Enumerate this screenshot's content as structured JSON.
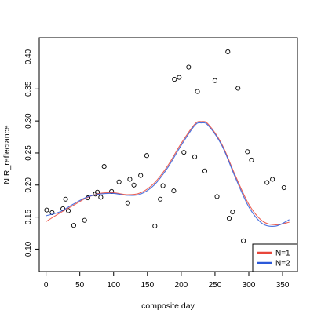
{
  "chart_data": {
    "type": "scatter",
    "title": "",
    "xlabel": "composite day",
    "ylabel": "NIR_reflectance",
    "xlim": [
      -10,
      372
    ],
    "ylim": [
      0.065,
      0.43
    ],
    "x_ticks": [
      0,
      50,
      100,
      150,
      200,
      250,
      300,
      350
    ],
    "y_ticks": [
      0.1,
      0.15,
      0.2,
      0.25,
      0.3,
      0.35,
      0.4
    ],
    "grid": false,
    "legend_position": "bottom-right",
    "points": [
      {
        "x": 1,
        "y": 0.161
      },
      {
        "x": 9,
        "y": 0.157
      },
      {
        "x": 25,
        "y": 0.163
      },
      {
        "x": 29,
        "y": 0.178
      },
      {
        "x": 33,
        "y": 0.16
      },
      {
        "x": 41,
        "y": 0.137
      },
      {
        "x": 57,
        "y": 0.145
      },
      {
        "x": 62,
        "y": 0.18
      },
      {
        "x": 73,
        "y": 0.186
      },
      {
        "x": 76,
        "y": 0.189
      },
      {
        "x": 81,
        "y": 0.181
      },
      {
        "x": 86,
        "y": 0.229
      },
      {
        "x": 97,
        "y": 0.19
      },
      {
        "x": 108,
        "y": 0.205
      },
      {
        "x": 121,
        "y": 0.172
      },
      {
        "x": 124,
        "y": 0.209
      },
      {
        "x": 130,
        "y": 0.2
      },
      {
        "x": 140,
        "y": 0.215
      },
      {
        "x": 149,
        "y": 0.246
      },
      {
        "x": 161,
        "y": 0.136
      },
      {
        "x": 169,
        "y": 0.178
      },
      {
        "x": 173,
        "y": 0.199
      },
      {
        "x": 189,
        "y": 0.191
      },
      {
        "x": 190,
        "y": 0.365
      },
      {
        "x": 197,
        "y": 0.368
      },
      {
        "x": 204,
        "y": 0.251
      },
      {
        "x": 211,
        "y": 0.384
      },
      {
        "x": 220,
        "y": 0.244
      },
      {
        "x": 224,
        "y": 0.346
      },
      {
        "x": 235,
        "y": 0.222
      },
      {
        "x": 250,
        "y": 0.363
      },
      {
        "x": 253,
        "y": 0.182
      },
      {
        "x": 269,
        "y": 0.408
      },
      {
        "x": 271,
        "y": 0.148
      },
      {
        "x": 276,
        "y": 0.158
      },
      {
        "x": 284,
        "y": 0.351
      },
      {
        "x": 292,
        "y": 0.113
      },
      {
        "x": 298,
        "y": 0.252
      },
      {
        "x": 304,
        "y": 0.239
      },
      {
        "x": 327,
        "y": 0.204
      },
      {
        "x": 335,
        "y": 0.209
      },
      {
        "x": 352,
        "y": 0.196
      }
    ],
    "series": [
      {
        "name": "N=1",
        "color": "#e8463a",
        "x": [
          0,
          20,
          40,
          60,
          80,
          100,
          120,
          140,
          160,
          180,
          200,
          220,
          230,
          240,
          260,
          280,
          300,
          320,
          340,
          360
        ],
        "y": [
          0.143,
          0.156,
          0.168,
          0.18,
          0.187,
          0.188,
          0.185,
          0.188,
          0.203,
          0.23,
          0.265,
          0.295,
          0.299,
          0.295,
          0.264,
          0.215,
          0.17,
          0.144,
          0.138,
          0.142
        ]
      },
      {
        "name": "N=2",
        "color": "#2b59d9",
        "x": [
          0,
          20,
          40,
          60,
          80,
          100,
          120,
          140,
          160,
          180,
          200,
          220,
          230,
          240,
          260,
          280,
          300,
          320,
          340,
          360
        ],
        "y": [
          0.152,
          0.158,
          0.17,
          0.181,
          0.186,
          0.187,
          0.184,
          0.186,
          0.2,
          0.227,
          0.262,
          0.293,
          0.297,
          0.293,
          0.262,
          0.212,
          0.166,
          0.14,
          0.136,
          0.146
        ]
      }
    ]
  }
}
